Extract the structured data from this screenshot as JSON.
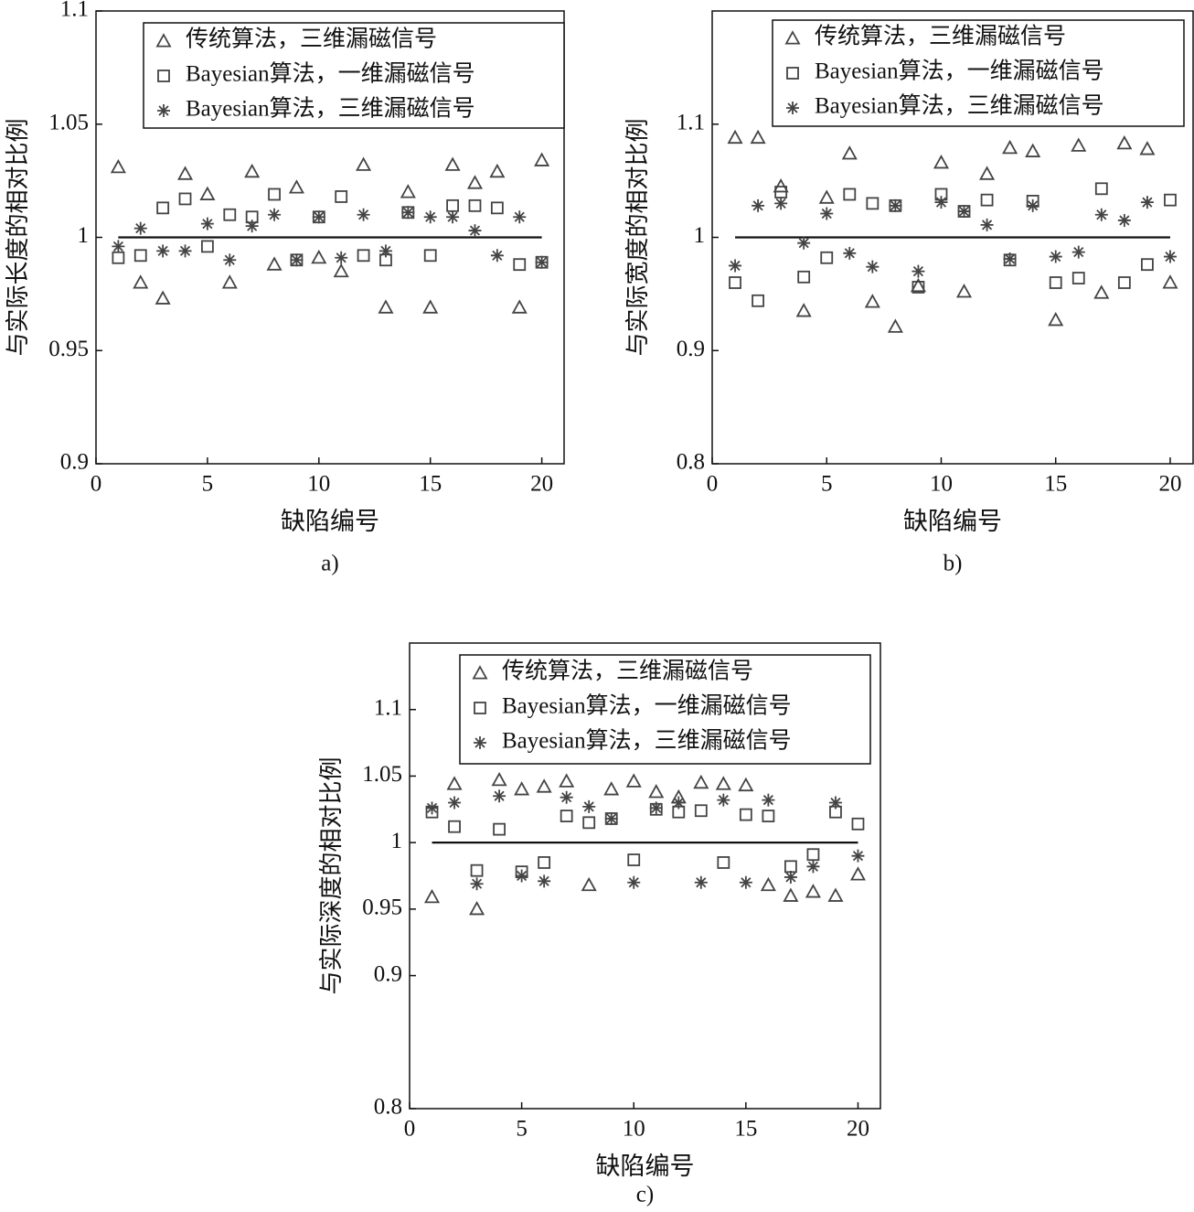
{
  "chart_data": [
    {
      "type": "scatter",
      "caption": "a)",
      "xlabel": "缺陷编号",
      "ylabel": "与实际长度的相对比例",
      "x": [
        1,
        2,
        3,
        4,
        5,
        6,
        7,
        8,
        9,
        10,
        11,
        12,
        13,
        14,
        15,
        16,
        17,
        18,
        19,
        20
      ],
      "xlim": [
        0,
        21
      ],
      "xticks": [
        0,
        5,
        10,
        15,
        20
      ],
      "ylim": [
        0.9,
        1.1
      ],
      "yticks": [
        0.9,
        0.95,
        1,
        1.05,
        1.1
      ],
      "hline": {
        "y": 1,
        "x": [
          1,
          20
        ]
      },
      "series": [
        {
          "name": "传统算法，三维漏磁信号",
          "marker": "triangle",
          "color": "#444444",
          "values": [
            1.031,
            0.98,
            0.973,
            1.028,
            1.019,
            0.98,
            1.029,
            0.988,
            1.022,
            0.991,
            0.985,
            1.032,
            0.969,
            1.02,
            0.969,
            1.032,
            1.024,
            1.029,
            0.969,
            1.034
          ]
        },
        {
          "name": "Bayesian算法，一维漏磁信号",
          "marker": "square",
          "color": "#444444",
          "values": [
            0.991,
            0.992,
            1.013,
            1.017,
            0.996,
            1.01,
            1.009,
            1.019,
            0.99,
            1.009,
            1.018,
            0.992,
            0.99,
            1.011,
            0.992,
            1.014,
            1.014,
            1.013,
            0.988,
            0.989
          ]
        },
        {
          "name": "Bayesian算法，三维漏磁信号",
          "marker": "star",
          "color": "#444444",
          "values": [
            0.996,
            1.004,
            0.994,
            0.994,
            1.006,
            0.99,
            1.005,
            1.01,
            0.99,
            1.009,
            0.991,
            1.01,
            0.994,
            1.011,
            1.009,
            1.009,
            1.003,
            0.992,
            1.009,
            0.989
          ]
        }
      ]
    },
    {
      "type": "scatter",
      "caption": "b)",
      "xlabel": "缺陷编号",
      "ylabel": "与实际宽度的相对比例",
      "x": [
        1,
        2,
        3,
        4,
        5,
        6,
        7,
        8,
        9,
        10,
        11,
        12,
        13,
        14,
        15,
        16,
        17,
        18,
        19,
        20
      ],
      "xlim": [
        0,
        21
      ],
      "xticks": [
        0,
        5,
        10,
        15,
        20
      ],
      "ylim": [
        0.8,
        1.2
      ],
      "yticks": [
        0.8,
        0.9,
        1,
        1.1
      ],
      "hline": {
        "y": 1,
        "x": [
          1,
          20
        ]
      },
      "series": [
        {
          "name": "传统算法，三维漏磁信号",
          "marker": "triangle",
          "color": "#444444",
          "values": [
            1.088,
            1.088,
            1.045,
            0.935,
            1.035,
            1.074,
            0.943,
            0.921,
            0.957,
            1.066,
            0.952,
            1.056,
            1.079,
            1.076,
            0.927,
            1.081,
            0.951,
            1.083,
            1.078,
            0.96
          ]
        },
        {
          "name": "Bayesian算法，一维漏磁信号",
          "marker": "square",
          "color": "#444444",
          "values": [
            0.96,
            0.944,
            1.04,
            0.965,
            0.982,
            1.038,
            1.03,
            1.028,
            0.956,
            1.038,
            1.023,
            1.033,
            0.98,
            1.032,
            0.96,
            0.964,
            1.043,
            0.96,
            0.976,
            1.033
          ]
        },
        {
          "name": "Bayesian算法，三维漏磁信号",
          "marker": "star",
          "color": "#444444",
          "values": [
            0.975,
            1.028,
            1.03,
            0.995,
            1.021,
            0.986,
            0.974,
            1.028,
            0.97,
            1.031,
            1.023,
            1.011,
            0.981,
            1.028,
            0.983,
            0.987,
            1.02,
            1.015,
            1.031,
            0.983
          ]
        }
      ]
    },
    {
      "type": "scatter",
      "caption": "c)",
      "xlabel": "缺陷编号",
      "ylabel": "与实际深度的相对比例",
      "x": [
        1,
        2,
        3,
        4,
        5,
        6,
        7,
        8,
        9,
        10,
        11,
        12,
        13,
        14,
        15,
        16,
        17,
        18,
        19,
        20
      ],
      "xlim": [
        0,
        21
      ],
      "xticks": [
        0,
        5,
        10,
        15,
        20
      ],
      "ylim": [
        0.8,
        1.15
      ],
      "yticks": [
        0.8,
        0.9,
        0.95,
        1,
        1.05,
        1.1
      ],
      "hline": {
        "y": 1,
        "x": [
          1,
          20
        ]
      },
      "series": [
        {
          "name": "传统算法，三维漏磁信号",
          "marker": "triangle",
          "color": "#444444",
          "values": [
            0.959,
            1.044,
            0.95,
            1.047,
            1.04,
            1.042,
            1.046,
            0.968,
            1.04,
            1.046,
            1.038,
            1.034,
            1.045,
            1.044,
            1.043,
            0.968,
            0.96,
            0.963,
            0.96,
            0.976
          ]
        },
        {
          "name": "Bayesian算法，一维漏磁信号",
          "marker": "square",
          "color": "#444444",
          "values": [
            1.023,
            1.012,
            0.979,
            1.01,
            0.978,
            0.985,
            1.02,
            1.015,
            1.018,
            0.987,
            1.025,
            1.023,
            1.024,
            0.985,
            1.021,
            1.02,
            0.982,
            0.991,
            1.023,
            1.014
          ]
        },
        {
          "name": "Bayesian算法，三维漏磁信号",
          "marker": "star",
          "color": "#444444",
          "values": [
            1.026,
            1.03,
            0.969,
            1.035,
            0.975,
            0.971,
            1.034,
            1.027,
            1.018,
            0.97,
            1.026,
            1.03,
            0.97,
            1.032,
            0.97,
            1.032,
            0.974,
            0.982,
            1.03,
            0.99
          ]
        }
      ]
    }
  ]
}
